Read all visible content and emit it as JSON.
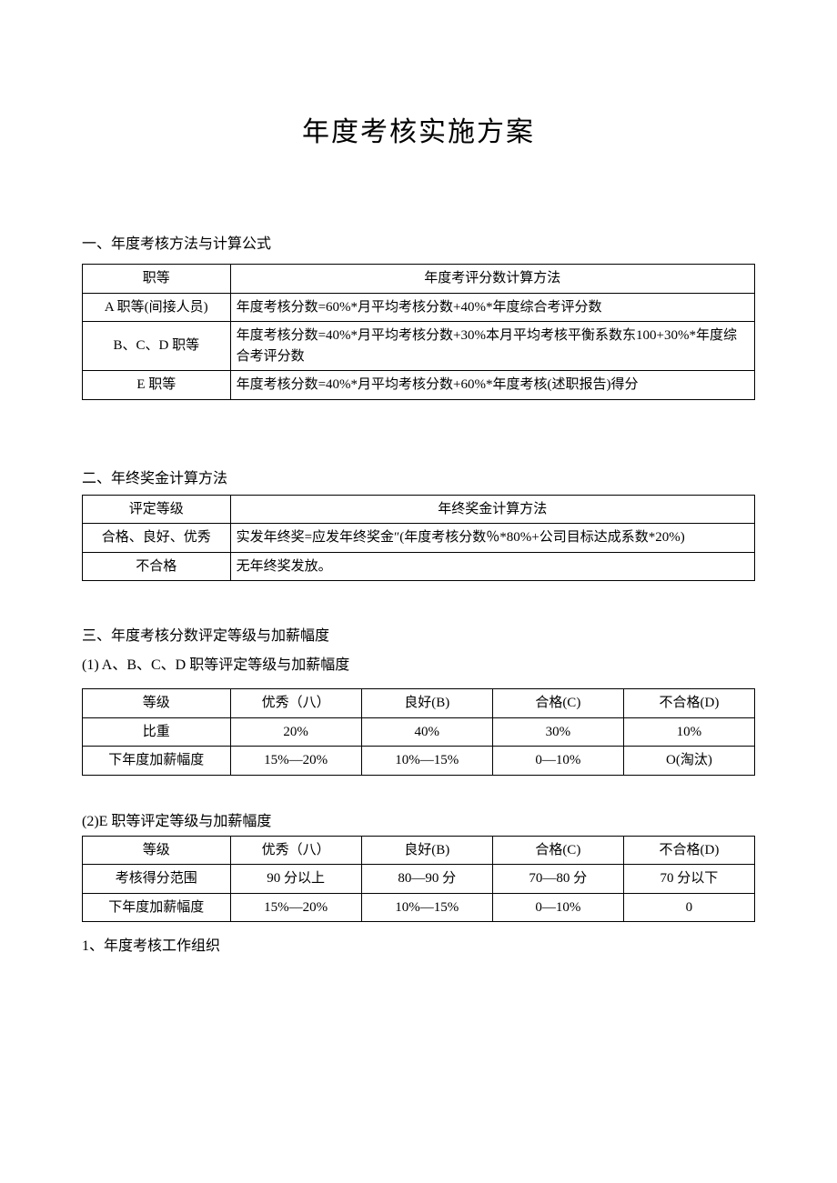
{
  "title": "年度考核实施方案",
  "section1": {
    "heading": "一、年度考核方法与计算公式",
    "table": {
      "header": {
        "c1": "职等",
        "c2": "年度考评分数计算方法"
      },
      "rows": [
        {
          "c1": "A 职等(间接人员)",
          "c2": "年度考核分数=60%*月平均考核分数+40%*年度综合考评分数"
        },
        {
          "c1": "B、C、D 职等",
          "c2": "年度考核分数=40%*月平均考核分数+30%本月平均考核平衡系数东100+30%*年度综合考评分数"
        },
        {
          "c1": "E 职等",
          "c2": "年度考核分数=40%*月平均考核分数+60%*年度考核(述职报告)得分"
        }
      ]
    }
  },
  "section2": {
    "heading": "二、年终奖金计算方法",
    "table": {
      "header": {
        "c1": "评定等级",
        "c2": "年终奖金计算方法"
      },
      "rows": [
        {
          "c1": "合格、良好、优秀",
          "c2": "实发年终奖=应发年终奖金″(年度考核分数％*80%+公司目标达成系数*20%)"
        },
        {
          "c1": "不合格",
          "c2": "无年终奖发放。"
        }
      ]
    }
  },
  "section3": {
    "heading": "三、年度考核分数评定等级与加薪幅度",
    "sub1": {
      "heading": "(1)  A、B、C、D 职等评定等级与加薪幅度",
      "table": {
        "rows": [
          {
            "c1": "等级",
            "c2": "优秀（八）",
            "c3": "良好(B)",
            "c4": "合格(C)",
            "c5": "不合格(D)"
          },
          {
            "c1": "比重",
            "c2": "20%",
            "c3": "40%",
            "c4": "30%",
            "c5": "10%"
          },
          {
            "c1": "下年度加薪幅度",
            "c2": "15%—20%",
            "c3": "10%—15%",
            "c4": "0—10%",
            "c5": "O(淘汰)"
          }
        ]
      }
    },
    "sub2": {
      "heading": "(2)E 职等评定等级与加薪幅度",
      "table": {
        "rows": [
          {
            "c1": "等级",
            "c2": "优秀（八）",
            "c3": "良好(B)",
            "c4": "合格(C)",
            "c5": "不合格(D)"
          },
          {
            "c1": "考核得分范围",
            "c2": "90 分以上",
            "c3": "80—90 分",
            "c4": "70—80 分",
            "c5": "70 分以下"
          },
          {
            "c1": "下年度加薪幅度",
            "c2": "15%—20%",
            "c3": "10%—15%",
            "c4": "0—10%",
            "c5": "0"
          }
        ]
      }
    },
    "note": "1、年度考核工作组织"
  },
  "styles": {
    "page_bg": "#ffffff",
    "text_color": "#000000",
    "border_color": "#000000",
    "title_fontsize": 30,
    "body_fontsize": 16,
    "table_fontsize": 15,
    "font_family": "SimSun"
  }
}
